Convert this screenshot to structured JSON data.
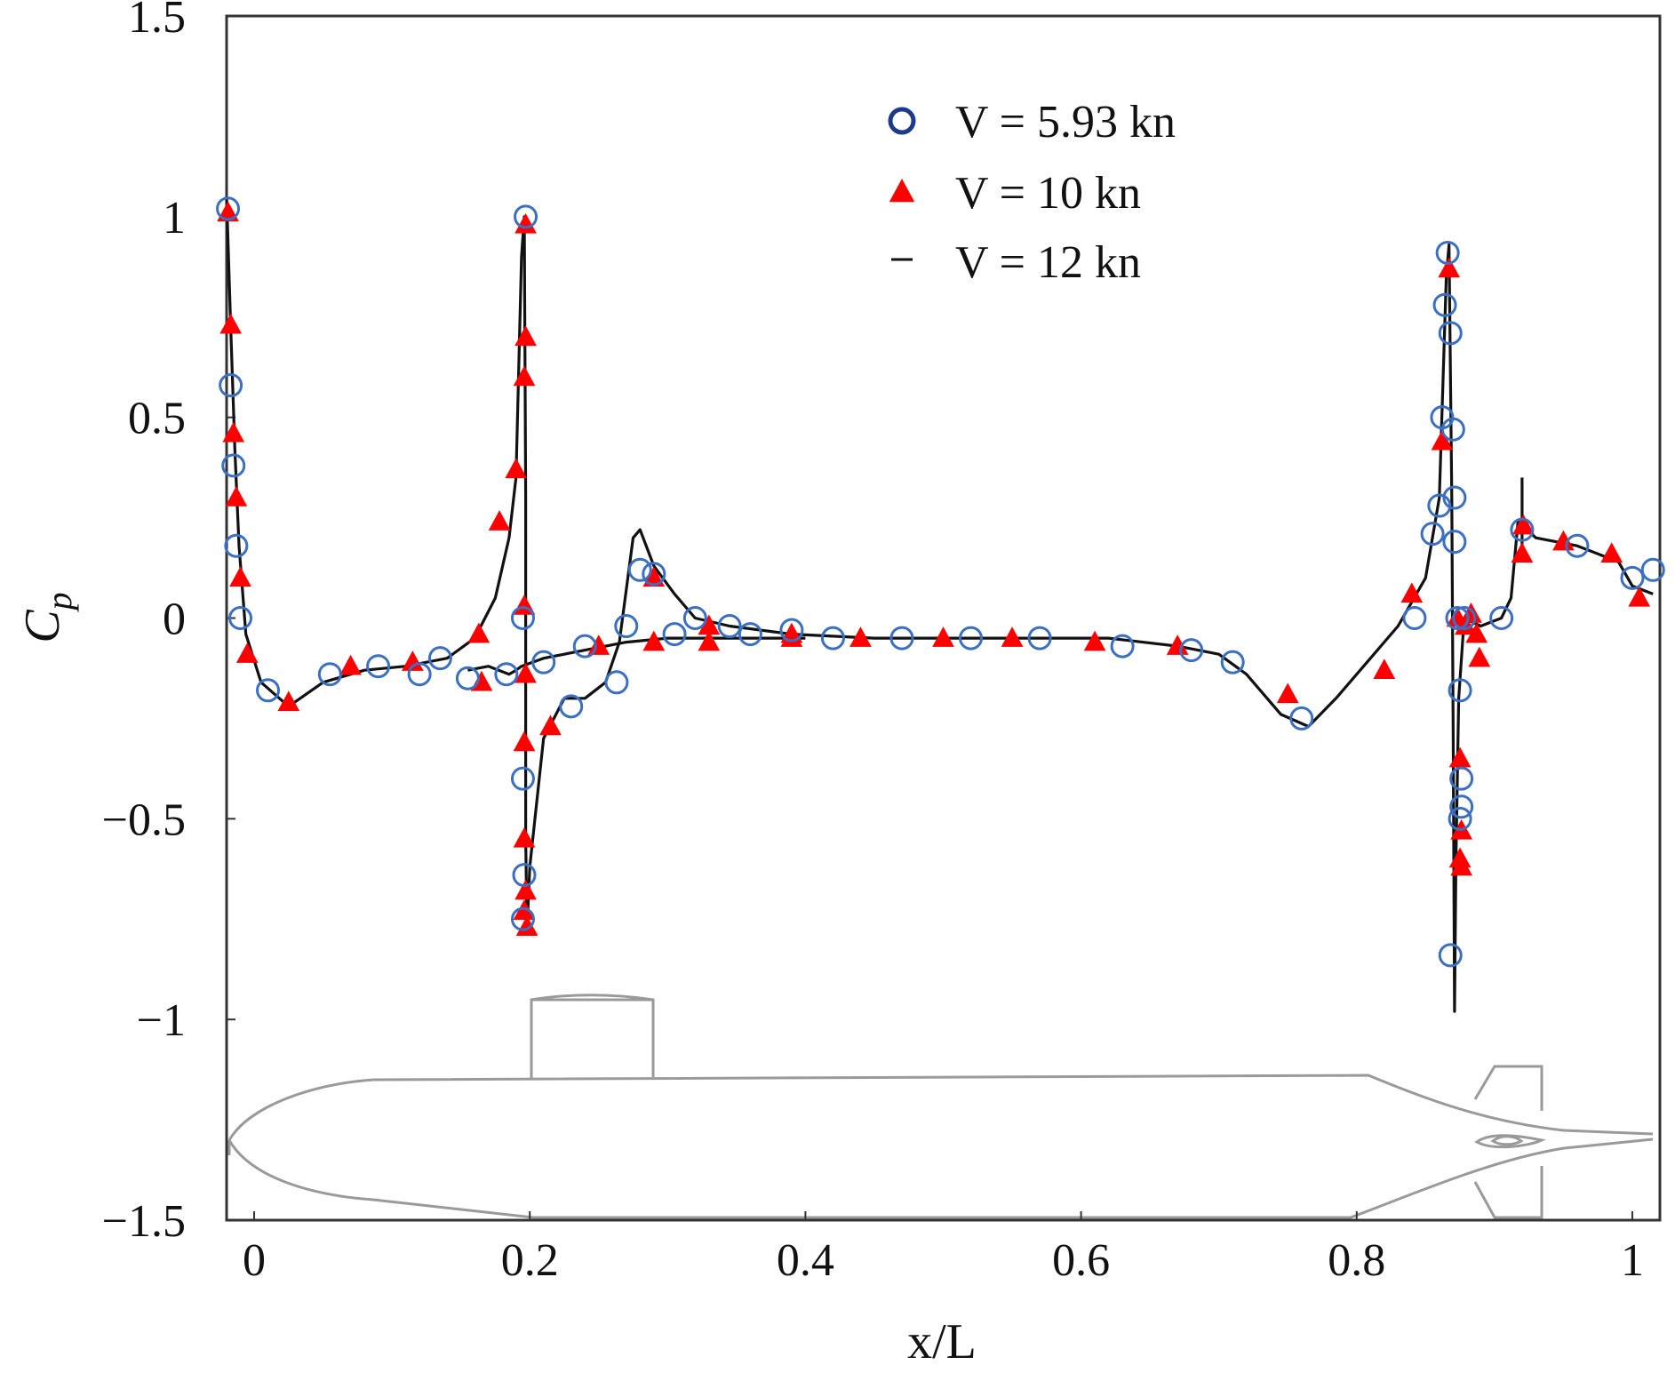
{
  "chart_data": {
    "type": "scatter",
    "title": "",
    "xlabel": "x/L",
    "ylabel_main": "C",
    "ylabel_sub": "p",
    "xlim": [
      -0.02,
      1.02
    ],
    "ylim": [
      -1.5,
      1.5
    ],
    "xticks": [
      0,
      0.2,
      0.4,
      0.6,
      0.8,
      1
    ],
    "xtick_labels": [
      "0",
      "0.2",
      "0.4",
      "0.6",
      "0.8",
      "1"
    ],
    "yticks": [
      1.5,
      1,
      0.5,
      0,
      -0.5,
      -1,
      -1.5
    ],
    "ytick_labels": [
      "1.5",
      "1",
      "0.5",
      "0",
      "−0.5",
      "−1",
      "−1.5"
    ],
    "grid": false,
    "legend_position": "top-center",
    "series": [
      {
        "name": "V = 5.93 kn",
        "marker": "open-circle",
        "color": "#3a6fc4",
        "points": [
          [
            -0.019,
            1.02
          ],
          [
            -0.017,
            0.58
          ],
          [
            -0.015,
            0.38
          ],
          [
            -0.013,
            0.18
          ],
          [
            -0.01,
            0.0
          ],
          [
            0.01,
            -0.18
          ],
          [
            0.055,
            -0.14
          ],
          [
            0.09,
            -0.12
          ],
          [
            0.12,
            -0.14
          ],
          [
            0.135,
            -0.1
          ],
          [
            0.155,
            -0.15
          ],
          [
            0.183,
            -0.14
          ],
          [
            0.195,
            0.0
          ],
          [
            0.197,
            1.0
          ],
          [
            0.195,
            -0.4
          ],
          [
            0.196,
            -0.64
          ],
          [
            0.195,
            -0.75
          ],
          [
            0.21,
            -0.11
          ],
          [
            0.23,
            -0.22
          ],
          [
            0.24,
            -0.07
          ],
          [
            0.263,
            -0.16
          ],
          [
            0.27,
            -0.02
          ],
          [
            0.28,
            0.12
          ],
          [
            0.29,
            0.11
          ],
          [
            0.305,
            -0.04
          ],
          [
            0.32,
            0.0
          ],
          [
            0.345,
            -0.02
          ],
          [
            0.36,
            -0.04
          ],
          [
            0.39,
            -0.03
          ],
          [
            0.42,
            -0.05
          ],
          [
            0.47,
            -0.05
          ],
          [
            0.52,
            -0.05
          ],
          [
            0.57,
            -0.05
          ],
          [
            0.63,
            -0.07
          ],
          [
            0.68,
            -0.08
          ],
          [
            0.71,
            -0.11
          ],
          [
            0.76,
            -0.25
          ],
          [
            0.842,
            0.0
          ],
          [
            0.855,
            0.21
          ],
          [
            0.86,
            0.28
          ],
          [
            0.862,
            0.5
          ],
          [
            0.864,
            0.78
          ],
          [
            0.866,
            0.91
          ],
          [
            0.868,
            0.71
          ],
          [
            0.87,
            0.47
          ],
          [
            0.871,
            0.3
          ],
          [
            0.871,
            0.19
          ],
          [
            0.873,
            0.0
          ],
          [
            0.875,
            -0.18
          ],
          [
            0.876,
            -0.4
          ],
          [
            0.876,
            -0.47
          ],
          [
            0.875,
            -0.5
          ],
          [
            0.868,
            -0.84
          ],
          [
            0.878,
            0.0
          ],
          [
            0.905,
            0.0
          ],
          [
            0.92,
            0.22
          ],
          [
            0.96,
            0.18
          ],
          [
            1.0,
            0.1
          ],
          [
            1.015,
            0.12
          ]
        ]
      },
      {
        "name": "V = 10 kn",
        "marker": "filled-triangle",
        "color": "#ff0000",
        "points": [
          [
            -0.019,
            1.01
          ],
          [
            -0.017,
            0.73
          ],
          [
            -0.015,
            0.46
          ],
          [
            -0.013,
            0.3
          ],
          [
            -0.01,
            0.1
          ],
          [
            -0.005,
            -0.09
          ],
          [
            0.025,
            -0.21
          ],
          [
            0.07,
            -0.12
          ],
          [
            0.115,
            -0.11
          ],
          [
            0.163,
            -0.04
          ],
          [
            0.165,
            -0.16
          ],
          [
            0.178,
            0.24
          ],
          [
            0.19,
            0.37
          ],
          [
            0.197,
            0.98
          ],
          [
            0.197,
            0.7
          ],
          [
            0.196,
            0.6
          ],
          [
            0.196,
            0.03
          ],
          [
            0.197,
            -0.14
          ],
          [
            0.196,
            -0.31
          ],
          [
            0.196,
            -0.55
          ],
          [
            0.197,
            -0.68
          ],
          [
            0.196,
            -0.73
          ],
          [
            0.198,
            -0.77
          ],
          [
            0.215,
            -0.27
          ],
          [
            0.25,
            -0.07
          ],
          [
            0.29,
            0.1
          ],
          [
            0.29,
            -0.06
          ],
          [
            0.33,
            -0.02
          ],
          [
            0.33,
            -0.06
          ],
          [
            0.39,
            -0.04
          ],
          [
            0.39,
            -0.05
          ],
          [
            0.44,
            -0.05
          ],
          [
            0.5,
            -0.05
          ],
          [
            0.55,
            -0.05
          ],
          [
            0.61,
            -0.06
          ],
          [
            0.67,
            -0.07
          ],
          [
            0.75,
            -0.19
          ],
          [
            0.82,
            -0.13
          ],
          [
            0.84,
            0.06
          ],
          [
            0.862,
            0.44
          ],
          [
            0.867,
            0.87
          ],
          [
            0.873,
            0.0
          ],
          [
            0.875,
            -0.35
          ],
          [
            0.876,
            -0.53
          ],
          [
            0.875,
            -0.6
          ],
          [
            0.876,
            -0.62
          ],
          [
            0.879,
            -0.02
          ],
          [
            0.883,
            0.01
          ],
          [
            0.887,
            -0.04
          ],
          [
            0.889,
            -0.1
          ],
          [
            0.92,
            0.16
          ],
          [
            0.921,
            0.23
          ],
          [
            0.95,
            0.19
          ],
          [
            0.985,
            0.16
          ],
          [
            1.005,
            0.05
          ]
        ]
      },
      {
        "name": "V = 12 kn",
        "marker": "line",
        "color": "#111111",
        "segments": [
          [
            [
              -0.02,
              1.05
            ],
            [
              -0.017,
              0.72
            ],
            [
              -0.014,
              0.42
            ],
            [
              -0.011,
              0.18
            ],
            [
              -0.006,
              -0.04
            ],
            [
              0.005,
              -0.16
            ],
            [
              0.025,
              -0.22
            ],
            [
              0.05,
              -0.16
            ],
            [
              0.08,
              -0.13
            ],
            [
              0.11,
              -0.12
            ],
            [
              0.14,
              -0.1
            ],
            [
              0.16,
              -0.05
            ],
            [
              0.175,
              0.05
            ],
            [
              0.185,
              0.2
            ],
            [
              0.19,
              0.35
            ],
            [
              0.194,
              0.9
            ],
            [
              0.196,
              1.0
            ],
            [
              0.197,
              0.3
            ],
            [
              0.197,
              -0.55
            ],
            [
              0.198,
              -0.78
            ],
            [
              0.2,
              -0.62
            ],
            [
              0.21,
              -0.3
            ],
            [
              0.225,
              -0.2
            ],
            [
              0.24,
              -0.2
            ],
            [
              0.255,
              -0.16
            ],
            [
              0.265,
              -0.06
            ],
            [
              0.275,
              0.2
            ],
            [
              0.28,
              0.22
            ],
            [
              0.29,
              0.13
            ],
            [
              0.305,
              0.06
            ],
            [
              0.32,
              0.0
            ],
            [
              0.345,
              -0.02
            ],
            [
              0.39,
              -0.04
            ],
            [
              0.45,
              -0.05
            ],
            [
              0.55,
              -0.05
            ],
            [
              0.62,
              -0.05
            ],
            [
              0.67,
              -0.07
            ],
            [
              0.7,
              -0.09
            ],
            [
              0.72,
              -0.14
            ],
            [
              0.745,
              -0.24
            ],
            [
              0.765,
              -0.27
            ],
            [
              0.785,
              -0.2
            ],
            [
              0.81,
              -0.1
            ],
            [
              0.83,
              -0.02
            ],
            [
              0.85,
              0.1
            ],
            [
              0.86,
              0.3
            ],
            [
              0.865,
              0.85
            ],
            [
              0.867,
              0.93
            ],
            [
              0.869,
              0.3
            ],
            [
              0.87,
              -0.3
            ],
            [
              0.871,
              -0.98
            ],
            [
              0.872,
              -0.6
            ],
            [
              0.874,
              -0.2
            ],
            [
              0.878,
              0.0
            ],
            [
              0.89,
              -0.02
            ],
            [
              0.905,
              0.0
            ],
            [
              0.912,
              0.05
            ],
            [
              0.917,
              0.24
            ],
            [
              0.93,
              0.2
            ],
            [
              0.96,
              0.18
            ],
            [
              0.99,
              0.14
            ],
            [
              1.0,
              0.08
            ],
            [
              1.015,
              0.06
            ]
          ],
          [
            [
              0.155,
              -0.13
            ],
            [
              0.17,
              -0.12
            ],
            [
              0.185,
              -0.14
            ],
            [
              0.19,
              -0.13
            ],
            [
              0.194,
              -0.12
            ],
            [
              0.21,
              -0.1
            ],
            [
              0.24,
              -0.08
            ],
            [
              0.27,
              -0.06
            ],
            [
              0.3,
              -0.05
            ],
            [
              0.35,
              -0.05
            ],
            [
              0.4,
              -0.05
            ]
          ],
          [
            [
              0.92,
              0.35
            ],
            [
              0.92,
              0.15
            ]
          ]
        ]
      }
    ],
    "annotation": "submarine hull profile outline (decorative)"
  }
}
